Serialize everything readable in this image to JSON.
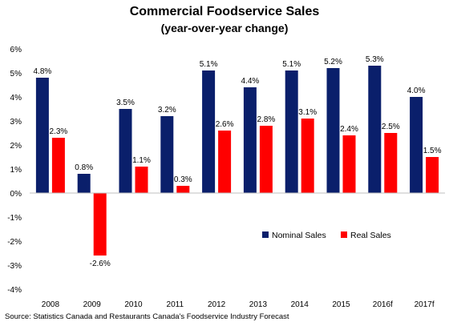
{
  "chart_data": {
    "type": "bar",
    "title": "Commercial Foodservice Sales",
    "subtitle": "(year-over-year change)",
    "categories": [
      "2008",
      "2009",
      "2010",
      "2011",
      "2012",
      "2013",
      "2014",
      "2015",
      "2016f",
      "2017f"
    ],
    "series": [
      {
        "name": "Nominal Sales",
        "color": "#0a1f6b",
        "values": [
          4.8,
          0.8,
          3.5,
          3.2,
          5.1,
          4.4,
          5.1,
          5.2,
          5.3,
          4.0
        ],
        "labels": [
          "4.8%",
          "0.8%",
          "3.5%",
          "3.2%",
          "5.1%",
          "4.4%",
          "5.1%",
          "5.2%",
          "5.3%",
          "4.0%"
        ]
      },
      {
        "name": "Real Sales",
        "color": "#ff0000",
        "values": [
          2.3,
          -2.6,
          1.1,
          0.3,
          2.6,
          2.8,
          3.1,
          2.4,
          2.5,
          1.5
        ],
        "labels": [
          "2.3%",
          "-2.6%",
          "1.1%",
          "0.3%",
          "2.6%",
          "2.8%",
          "3.1%",
          "2.4%",
          "2.5%",
          "1.5%"
        ]
      }
    ],
    "ylim": [
      -4,
      6
    ],
    "yticks": [
      -4,
      -3,
      -2,
      -1,
      0,
      1,
      2,
      3,
      4,
      5,
      6
    ],
    "ytick_labels": [
      "-4%",
      "-3%",
      "-2%",
      "-1%",
      "0%",
      "1%",
      "2%",
      "3%",
      "4%",
      "5%",
      "6%"
    ],
    "xlabel": "",
    "ylabel": "",
    "grid": false,
    "legend": "lower-right"
  },
  "source": "Source:  Statistics Canada and Restaurants Canada's Foodservice Industry Forecast"
}
